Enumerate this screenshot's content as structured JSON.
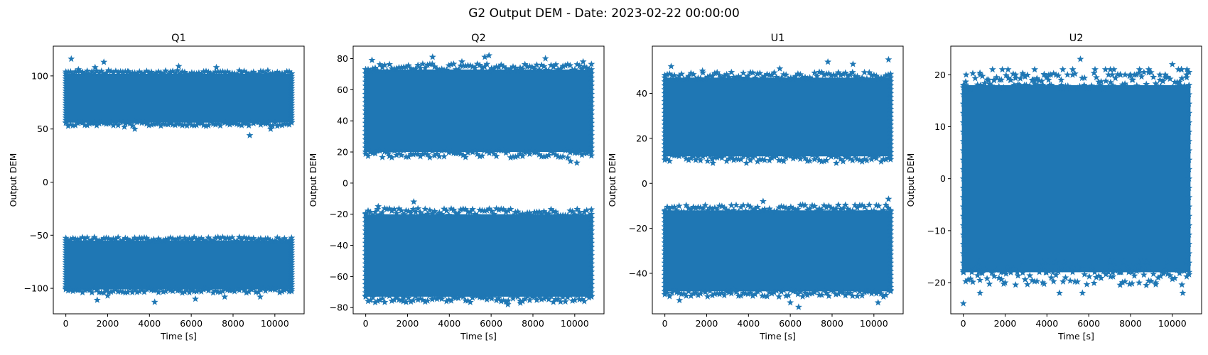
{
  "figure": {
    "suptitle": "G2 Output DEM - Date: 2023-02-22 00:00:00",
    "marker_color": "#1f77b4",
    "marker": "star"
  },
  "chart_data": [
    {
      "type": "scatter",
      "title": "Q1",
      "xlabel": "Time [s]",
      "ylabel": "Output DEM",
      "xlim": [
        -600,
        11400
      ],
      "ylim": [
        -124,
        128
      ],
      "xticks": [
        0,
        2000,
        4000,
        6000,
        8000,
        10000
      ],
      "yticks": [
        -100,
        -50,
        0,
        50,
        100
      ],
      "x_range": [
        0,
        10800
      ],
      "grid": false,
      "bands": [
        {
          "y_min": 56,
          "y_max": 102,
          "y_center": 79
        },
        {
          "y_min": -101,
          "y_max": -55,
          "y_center": -79
        }
      ],
      "outliers": [
        [
          260,
          116
        ],
        [
          1400,
          108
        ],
        [
          1820,
          113
        ],
        [
          4250,
          -113
        ],
        [
          1500,
          -111
        ],
        [
          8800,
          44
        ],
        [
          9800,
          50
        ],
        [
          3300,
          50
        ],
        [
          2800,
          52
        ],
        [
          7200,
          108
        ],
        [
          5400,
          109
        ],
        [
          6200,
          -110
        ],
        [
          9300,
          -108
        ],
        [
          600,
          106
        ],
        [
          2000,
          -107
        ],
        [
          3000,
          104
        ],
        [
          7600,
          -108
        ]
      ]
    },
    {
      "type": "scatter",
      "title": "Q2",
      "xlabel": "Time [s]",
      "ylabel": "Output DEM",
      "xlim": [
        -600,
        11400
      ],
      "ylim": [
        -84,
        88
      ],
      "xticks": [
        0,
        2000,
        4000,
        6000,
        8000,
        10000
      ],
      "yticks": [
        -80,
        -60,
        -40,
        -20,
        0,
        20,
        40,
        60,
        80
      ],
      "x_range": [
        0,
        10800
      ],
      "grid": false,
      "bands": [
        {
          "y_min": 20,
          "y_max": 73,
          "y_center": 46
        },
        {
          "y_min": -73,
          "y_max": -20,
          "y_center": -46
        }
      ],
      "outliers": [
        [
          5700,
          81
        ],
        [
          5900,
          82
        ],
        [
          3200,
          81
        ],
        [
          9800,
          14
        ],
        [
          10100,
          13
        ],
        [
          2300,
          -12
        ],
        [
          600,
          -15
        ],
        [
          300,
          79
        ],
        [
          8600,
          80
        ],
        [
          1800,
          -76
        ],
        [
          7400,
          -77
        ],
        [
          4600,
          78
        ],
        [
          6800,
          -78
        ],
        [
          1100,
          19
        ],
        [
          10400,
          78
        ]
      ]
    },
    {
      "type": "scatter",
      "title": "U1",
      "xlabel": "Time [s]",
      "ylabel": "Output DEM",
      "xlim": [
        -600,
        11400
      ],
      "ylim": [
        -58,
        61
      ],
      "xticks": [
        0,
        2000,
        4000,
        6000,
        8000,
        10000
      ],
      "yticks": [
        -40,
        -20,
        0,
        20,
        40
      ],
      "x_range": [
        0,
        10800
      ],
      "grid": false,
      "bands": [
        {
          "y_min": 12,
          "y_max": 47,
          "y_center": 29
        },
        {
          "y_min": -48,
          "y_max": -12,
          "y_center": -30
        }
      ],
      "outliers": [
        [
          10700,
          55
        ],
        [
          7800,
          54
        ],
        [
          9000,
          53
        ],
        [
          300,
          52
        ],
        [
          10700,
          -7
        ],
        [
          6000,
          -53
        ],
        [
          6400,
          -55
        ],
        [
          700,
          -52
        ],
        [
          2300,
          9
        ],
        [
          3900,
          9
        ],
        [
          8200,
          9
        ],
        [
          4700,
          -8
        ],
        [
          1800,
          50
        ],
        [
          5500,
          51
        ],
        [
          10200,
          -53
        ]
      ]
    },
    {
      "type": "scatter",
      "title": "U2",
      "xlabel": "Time [s]",
      "ylabel": "Output DEM",
      "xlim": [
        -600,
        11400
      ],
      "ylim": [
        -26,
        25.5
      ],
      "xticks": [
        0,
        2000,
        4000,
        6000,
        8000,
        10000
      ],
      "yticks": [
        -20,
        -10,
        0,
        10,
        20
      ],
      "x_range": [
        0,
        10800
      ],
      "grid": false,
      "bands": [
        {
          "y_min": -18,
          "y_max": 18,
          "y_center": 0
        }
      ],
      "level_range": [
        -18,
        21
      ],
      "outliers": [
        [
          0,
          -24
        ],
        [
          5600,
          23
        ],
        [
          10000,
          22
        ],
        [
          10500,
          -22
        ],
        [
          800,
          -22
        ],
        [
          1400,
          21
        ],
        [
          2500,
          20
        ],
        [
          8000,
          20
        ],
        [
          3800,
          -20
        ],
        [
          6300,
          21
        ],
        [
          4600,
          -22
        ],
        [
          9200,
          -20
        ],
        [
          5700,
          -22
        ],
        [
          10700,
          21
        ],
        [
          2000,
          -20
        ]
      ]
    }
  ]
}
